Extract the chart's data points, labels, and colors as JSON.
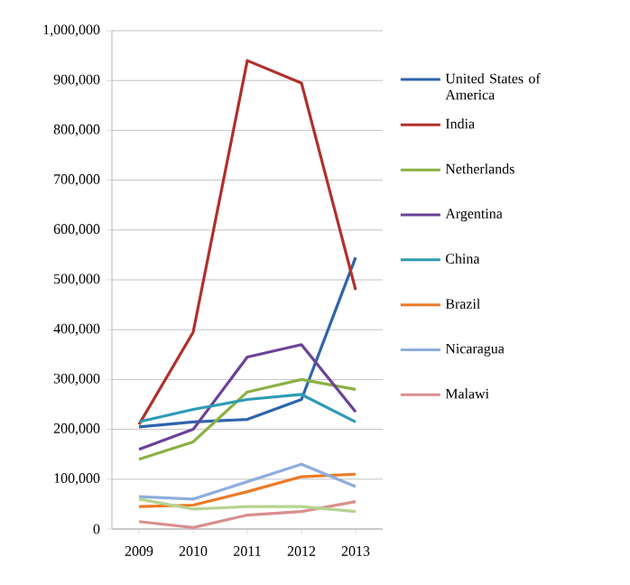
{
  "chart_data": {
    "type": "line",
    "categories": [
      "2009",
      "2010",
      "2011",
      "2012",
      "2013"
    ],
    "series": [
      {
        "name": "United States of America",
        "color": "#2e64ab",
        "values": [
          205000,
          215000,
          220000,
          260000,
          545000
        ]
      },
      {
        "name": "India",
        "color": "#b0302d",
        "values": [
          210000,
          395000,
          940000,
          895000,
          480000
        ]
      },
      {
        "name": "Netherlands",
        "color": "#8bb143",
        "values": [
          140000,
          175000,
          275000,
          300000,
          280000
        ]
      },
      {
        "name": "Argentina",
        "color": "#6a4298",
        "values": [
          160000,
          200000,
          345000,
          370000,
          235000
        ]
      },
      {
        "name": "China",
        "color": "#2e9bb5",
        "values": [
          215000,
          240000,
          260000,
          270000,
          215000
        ]
      },
      {
        "name": "Brazil",
        "color": "#ec7a26",
        "values": [
          45000,
          48000,
          75000,
          105000,
          110000
        ]
      },
      {
        "name": "Nicaragua",
        "color": "#8eaedc",
        "values": [
          65000,
          60000,
          95000,
          130000,
          85000
        ]
      },
      {
        "name": "Malawi",
        "color": "#d98f8f",
        "values": [
          15000,
          3000,
          28000,
          35000,
          55000
        ]
      },
      {
        "color": "#b5d38f",
        "values": [
          60000,
          40000,
          45000,
          45000,
          35000
        ]
      }
    ],
    "ylim": [
      0,
      1000000
    ],
    "yticks": [
      0,
      {
        "value": 100000,
        "label": "100,000"
      },
      {
        "value": 200000,
        "label": "200,000"
      },
      {
        "value": 300000,
        "label": "300,000"
      },
      {
        "value": 400000,
        "label": "400,000"
      },
      {
        "value": 500000,
        "label": "500,000"
      },
      {
        "value": 600000,
        "label": "600,000"
      },
      {
        "value": 700000,
        "label": "700,000"
      },
      {
        "value": 800000,
        "label": "800,000"
      },
      {
        "value": 900000,
        "label": "900,000"
      },
      {
        "value": 1000000,
        "label": "1,000,000"
      }
    ],
    "grid": "y",
    "legend": "right",
    "marker": "none",
    "line_style": "solid"
  }
}
